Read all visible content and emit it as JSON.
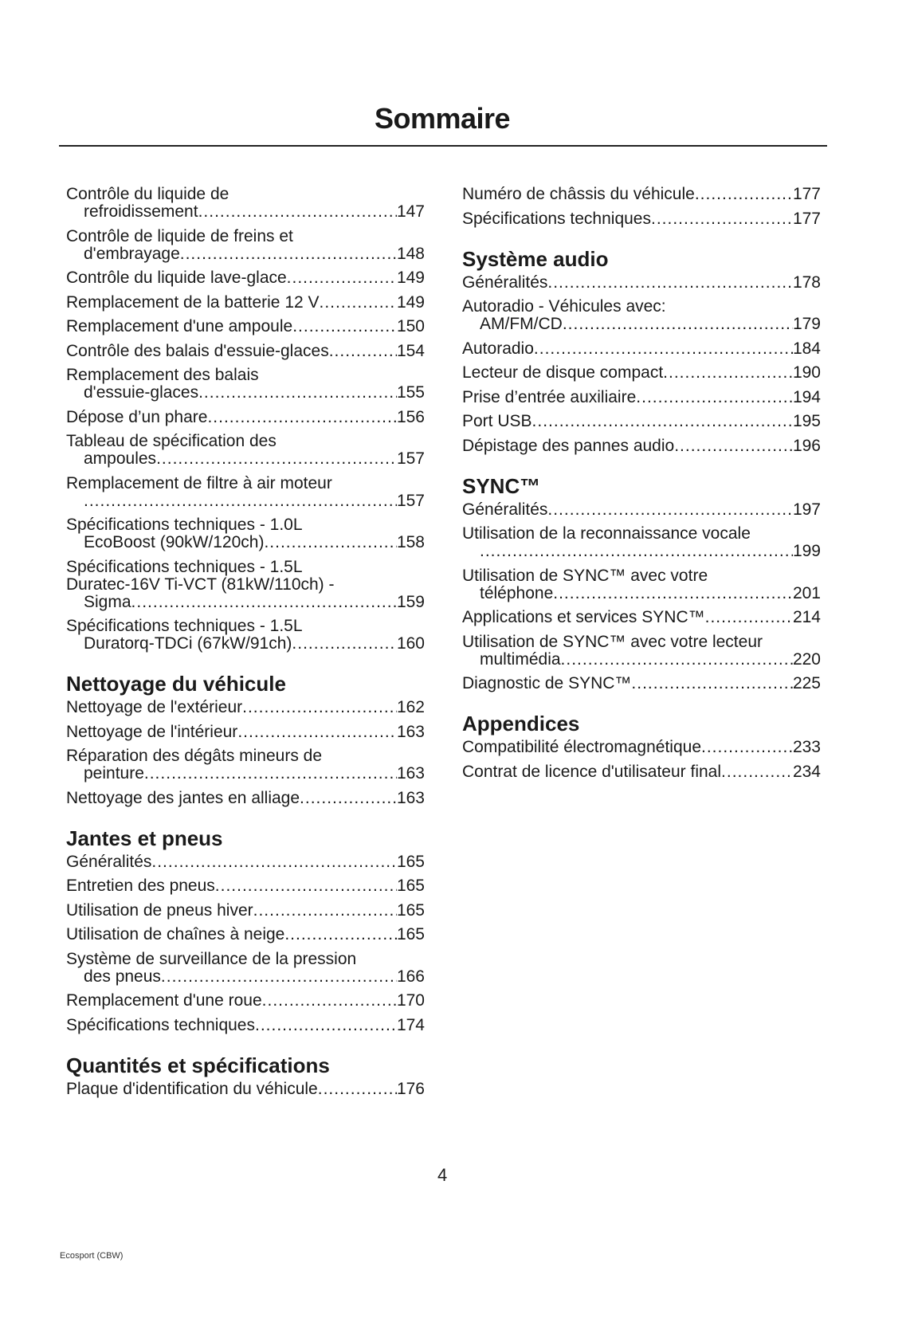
{
  "title": "Sommaire",
  "page_number": "4",
  "footer": "Ecosport (CBW)",
  "columns": [
    [
      {
        "type": "entry",
        "first": [
          "Contrôle du liquide de"
        ],
        "last": "refroidissement",
        "page": "147"
      },
      {
        "type": "entry",
        "first": [
          "Contrôle de liquide de freins et"
        ],
        "last": "d'embrayage",
        "page": "148"
      },
      {
        "type": "entry",
        "first": [],
        "last": "Contrôle du liquide lave-glace",
        "page": "149"
      },
      {
        "type": "entry",
        "first": [],
        "last": "Remplacement de la batterie 12 V",
        "page": "149"
      },
      {
        "type": "entry",
        "first": [],
        "last": "Remplacement d'une ampoule",
        "page": "150"
      },
      {
        "type": "entry",
        "first": [],
        "last": "Contrôle des balais d'essuie-glaces",
        "page": "154"
      },
      {
        "type": "entry",
        "first": [
          "Remplacement des balais"
        ],
        "last": "d'essuie-glaces",
        "page": "155"
      },
      {
        "type": "entry",
        "first": [],
        "last": "Dépose d’un phare",
        "page": "156"
      },
      {
        "type": "entry",
        "first": [
          "Tableau de spécification des"
        ],
        "last": "ampoules",
        "page": "157"
      },
      {
        "type": "entry",
        "first": [
          "Remplacement de filtre à air moteur"
        ],
        "last": "",
        "page": "157"
      },
      {
        "type": "entry",
        "first": [
          "Spécifications techniques - 1.0L"
        ],
        "last": "EcoBoost  (90kW/120ch)",
        "page": "158"
      },
      {
        "type": "entry",
        "first": [
          "Spécifications techniques - 1.5L",
          "Duratec-16V Ti-VCT (81kW/110ch) -"
        ],
        "last": "Sigma",
        "page": "159"
      },
      {
        "type": "entry",
        "first": [
          "Spécifications techniques - 1.5L"
        ],
        "last": "Duratorq-TDCi (67kW/91ch)",
        "page": "160"
      },
      {
        "type": "heading",
        "text": "Nettoyage du véhicule"
      },
      {
        "type": "entry",
        "first": [],
        "last": "Nettoyage de l'extérieur",
        "page": "162"
      },
      {
        "type": "entry",
        "first": [],
        "last": "Nettoyage de l'intérieur",
        "page": "163"
      },
      {
        "type": "entry",
        "first": [
          "Réparation des dégâts mineurs de"
        ],
        "last": "peinture",
        "page": "163"
      },
      {
        "type": "entry",
        "first": [],
        "last": "Nettoyage des jantes en alliage",
        "page": "163"
      },
      {
        "type": "heading",
        "text": "Jantes et pneus"
      },
      {
        "type": "entry",
        "first": [],
        "last": "Généralités",
        "page": "165"
      },
      {
        "type": "entry",
        "first": [],
        "last": "Entretien des pneus",
        "page": "165"
      },
      {
        "type": "entry",
        "first": [],
        "last": "Utilisation de pneus hiver",
        "page": "165"
      },
      {
        "type": "entry",
        "first": [],
        "last": "Utilisation de chaînes à neige",
        "page": "165"
      },
      {
        "type": "entry",
        "first": [
          "Système de surveillance de la pression"
        ],
        "last": "des pneus",
        "page": "166"
      },
      {
        "type": "entry",
        "first": [],
        "last": "Remplacement d'une roue",
        "page": "170"
      },
      {
        "type": "entry",
        "first": [],
        "last": "Spécifications techniques",
        "page": "174"
      },
      {
        "type": "heading",
        "text": "Quantités et spécifications"
      },
      {
        "type": "entry",
        "first": [],
        "last": "Plaque d'identification du véhicule",
        "page": "176"
      }
    ],
    [
      {
        "type": "entry",
        "first": [],
        "last": "Numéro de châssis du véhicule",
        "page": "177"
      },
      {
        "type": "entry",
        "first": [],
        "last": "Spécifications techniques",
        "page": "177"
      },
      {
        "type": "heading",
        "text": "Système audio"
      },
      {
        "type": "entry",
        "first": [],
        "last": "Généralités",
        "page": "178"
      },
      {
        "type": "entry",
        "first": [
          "Autoradio - Véhicules avec:"
        ],
        "last": "AM/FM/CD",
        "page": "179"
      },
      {
        "type": "entry",
        "first": [],
        "last": "Autoradio",
        "page": "184"
      },
      {
        "type": "entry",
        "first": [],
        "last": "Lecteur de disque compact",
        "page": "190"
      },
      {
        "type": "entry",
        "first": [],
        "last": "Prise d’entrée auxiliaire",
        "page": "194"
      },
      {
        "type": "entry",
        "first": [],
        "last": "Port  USB",
        "page": "195"
      },
      {
        "type": "entry",
        "first": [],
        "last": "Dépistage des pannes audio",
        "page": "196"
      },
      {
        "type": "heading",
        "text": "SYNC™"
      },
      {
        "type": "entry",
        "first": [],
        "last": "Généralités",
        "page": "197"
      },
      {
        "type": "entry",
        "first": [
          "Utilisation de la reconnaissance vocale"
        ],
        "last": "",
        "page": "199"
      },
      {
        "type": "entry",
        "first": [
          "Utilisation de SYNC™ avec votre"
        ],
        "last": "téléphone",
        "page": "201"
      },
      {
        "type": "entry",
        "first": [],
        "last": "Applications et services SYNC™",
        "page": "214"
      },
      {
        "type": "entry",
        "first": [
          "Utilisation de SYNC™ avec votre lecteur"
        ],
        "last": "multimédia",
        "page": "220"
      },
      {
        "type": "entry",
        "first": [],
        "last": "Diagnostic de SYNC™",
        "page": "225"
      },
      {
        "type": "heading",
        "text": "Appendices"
      },
      {
        "type": "entry",
        "first": [],
        "last": "Compatibilité  électromagnétique",
        "page": "233"
      },
      {
        "type": "entry",
        "first": [],
        "last": "Contrat de licence d'utilisateur final",
        "page": "234"
      }
    ]
  ]
}
